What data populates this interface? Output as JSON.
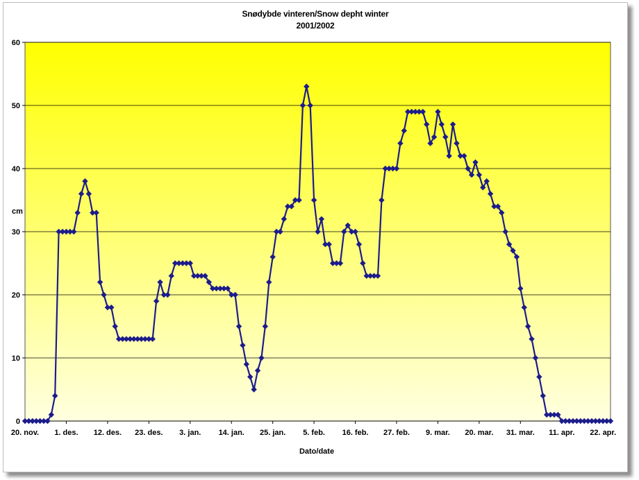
{
  "chart_data": {
    "type": "line",
    "title": "Snødybde vinteren/Snow depht winter",
    "subtitle": "2001/2002",
    "xlabel": "Dato/date",
    "ylabel": "cm",
    "ylim": [
      0,
      60
    ],
    "yticks": [
      0,
      10,
      20,
      30,
      40,
      50,
      60
    ],
    "grid": true,
    "colors": {
      "line": "#1c1c8c",
      "marker": "#1c1c8c",
      "plot_top": "#ffff00",
      "plot_bottom": "#ffffe0",
      "grid": "#000000"
    },
    "x_tick_labels": [
      "20. nov.",
      "1. des.",
      "12. des.",
      "23. des.",
      "3. jan.",
      "14. jan.",
      "25. jan.",
      "5. feb.",
      "16. feb.",
      "27. feb.",
      "9. mar.",
      "20. mar.",
      "31. mar.",
      "11. apr.",
      "22. apr."
    ],
    "x_tick_day": [
      0,
      11,
      22,
      33,
      44,
      55,
      66,
      77,
      88,
      99,
      110,
      121,
      132,
      143,
      154
    ],
    "x_start_label": "20. nov.",
    "x_day_range": [
      0,
      156
    ],
    "series": [
      {
        "x": [
          0,
          1,
          2,
          3,
          4,
          5,
          6,
          7,
          8,
          9,
          10,
          11,
          12,
          13,
          14,
          15,
          16,
          17,
          18,
          19,
          20,
          21,
          22,
          23,
          24,
          25,
          26,
          27,
          28,
          29,
          30,
          31,
          32,
          33,
          34,
          35,
          36,
          37,
          38,
          39,
          40,
          41,
          42,
          43,
          44,
          45,
          46,
          47,
          48,
          49,
          50,
          51,
          52,
          53,
          54,
          55,
          56,
          57,
          58,
          59,
          60,
          61,
          62,
          63,
          64,
          65,
          66,
          67,
          68,
          69,
          70,
          71,
          72,
          73,
          74,
          75,
          76,
          77,
          78,
          79,
          80,
          81,
          82,
          83,
          84,
          85,
          86,
          87,
          88,
          89,
          90,
          91,
          92,
          93,
          94,
          95,
          96,
          97,
          98,
          99,
          100,
          101,
          102,
          103,
          104,
          105,
          106,
          107,
          108,
          109,
          110,
          111,
          112,
          113,
          114,
          115,
          116,
          117,
          118,
          119,
          120,
          121,
          122,
          123,
          124,
          125,
          126,
          127,
          128,
          129,
          130,
          131,
          132,
          133,
          134,
          135,
          136,
          137,
          138,
          139,
          140,
          141,
          142,
          143,
          144,
          145,
          146,
          147,
          148,
          149,
          150,
          151,
          152,
          153,
          154,
          155,
          156
        ],
        "values": [
          0,
          0,
          0,
          0,
          0,
          0,
          0,
          1,
          4,
          30,
          30,
          30,
          30,
          30,
          33,
          36,
          38,
          36,
          33,
          33,
          22,
          20,
          18,
          18,
          15,
          13,
          13,
          13,
          13,
          13,
          13,
          13,
          13,
          13,
          13,
          19,
          22,
          20,
          20,
          23,
          25,
          25,
          25,
          25,
          25,
          23,
          23,
          23,
          23,
          22,
          21,
          21,
          21,
          21,
          21,
          20,
          20,
          15,
          12,
          9,
          7,
          5,
          8,
          10,
          15,
          22,
          26,
          30,
          30,
          32,
          34,
          34,
          35,
          35,
          50,
          53,
          50,
          35,
          30,
          32,
          28,
          28,
          25,
          25,
          25,
          30,
          31,
          30,
          30,
          28,
          25,
          23,
          23,
          23,
          23,
          35,
          40,
          40,
          40,
          40,
          44,
          46,
          49,
          49,
          49,
          49,
          49,
          47,
          44,
          45,
          49,
          47,
          45,
          42,
          47,
          44,
          42,
          42,
          40,
          39,
          41,
          39,
          37,
          38,
          36,
          34,
          34,
          33,
          30,
          28,
          27,
          26,
          21,
          18,
          15,
          13,
          10,
          7,
          4,
          1,
          1,
          1,
          1,
          0,
          0,
          0,
          0,
          0,
          0,
          0,
          0,
          0,
          0,
          0,
          0,
          0,
          0
        ]
      }
    ]
  }
}
